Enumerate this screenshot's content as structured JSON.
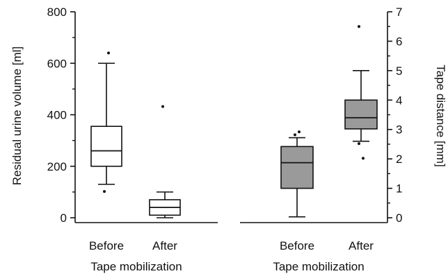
{
  "chart_data": [
    {
      "type": "box",
      "ylabel": "Residual urine volume [ml]",
      "xlabel": "Tape mobilization",
      "ylim": [
        0,
        800
      ],
      "yticks": [
        0,
        200,
        400,
        600,
        800
      ],
      "categories": [
        "Before",
        "After"
      ],
      "fill": "#ffffff",
      "boxes": [
        {
          "min": 130,
          "q1": 200,
          "median": 260,
          "q3": 355,
          "max": 600,
          "outliers": [
            102,
            640
          ]
        },
        {
          "min": 0,
          "q1": 10,
          "median": 40,
          "q3": 70,
          "max": 100,
          "outliers": [
            432
          ]
        }
      ]
    },
    {
      "type": "box",
      "ylabel": "Tape distance [mm]",
      "xlabel": "Tape mobilization",
      "ylim": [
        0,
        7
      ],
      "yticks": [
        0,
        1,
        2,
        3,
        4,
        5,
        6,
        7
      ],
      "categories": [
        "Before",
        "After"
      ],
      "fill": "#9a9a9a",
      "boxes": [
        {
          "min": 0.03,
          "q1": 1.0,
          "median": 1.87,
          "q3": 2.42,
          "max": 2.72,
          "outliers": [
            2.82,
            2.92
          ]
        },
        {
          "min": 2.6,
          "q1": 3.02,
          "median": 3.4,
          "q3": 4.0,
          "max": 5.0,
          "outliers": [
            2.52,
            2.02,
            6.5
          ]
        }
      ]
    }
  ]
}
